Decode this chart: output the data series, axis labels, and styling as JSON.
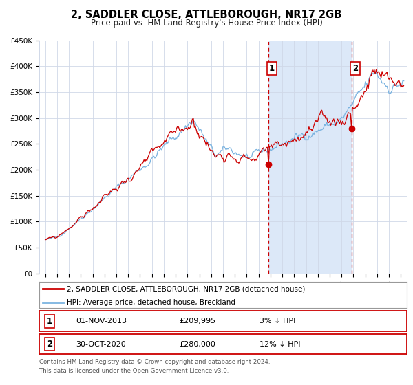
{
  "title": "2, SADDLER CLOSE, ATTLEBOROUGH, NR17 2GB",
  "subtitle": "Price paid vs. HM Land Registry's House Price Index (HPI)",
  "ylim": [
    0,
    450000
  ],
  "yticks": [
    0,
    50000,
    100000,
    150000,
    200000,
    250000,
    300000,
    350000,
    400000,
    450000
  ],
  "ytick_labels": [
    "£0",
    "£50K",
    "£100K",
    "£150K",
    "£200K",
    "£250K",
    "£300K",
    "£350K",
    "£400K",
    "£450K"
  ],
  "xmin": 1994.5,
  "xmax": 2025.5,
  "xticks": [
    1995,
    1996,
    1997,
    1998,
    1999,
    2000,
    2001,
    2002,
    2003,
    2004,
    2005,
    2006,
    2007,
    2008,
    2009,
    2010,
    2011,
    2012,
    2013,
    2014,
    2015,
    2016,
    2017,
    2018,
    2019,
    2020,
    2021,
    2022,
    2023,
    2024,
    2025
  ],
  "event1_x": 2013.83,
  "event1_y": 209995,
  "event2_x": 2020.83,
  "event2_y": 280000,
  "legend_line1": "2, SADDLER CLOSE, ATTLEBOROUGH, NR17 2GB (detached house)",
  "legend_line2": "HPI: Average price, detached house, Breckland",
  "table_row1": [
    "1",
    "01-NOV-2013",
    "£209,995",
    "3% ↓ HPI"
  ],
  "table_row2": [
    "2",
    "30-OCT-2020",
    "£280,000",
    "12% ↓ HPI"
  ],
  "footnote1": "Contains HM Land Registry data © Crown copyright and database right 2024.",
  "footnote2": "This data is licensed under the Open Government Licence v3.0.",
  "hpi_color": "#7ab3e0",
  "price_color": "#cc0000",
  "grid_color": "#d0d8e8",
  "shade_color": "#dce8f8"
}
